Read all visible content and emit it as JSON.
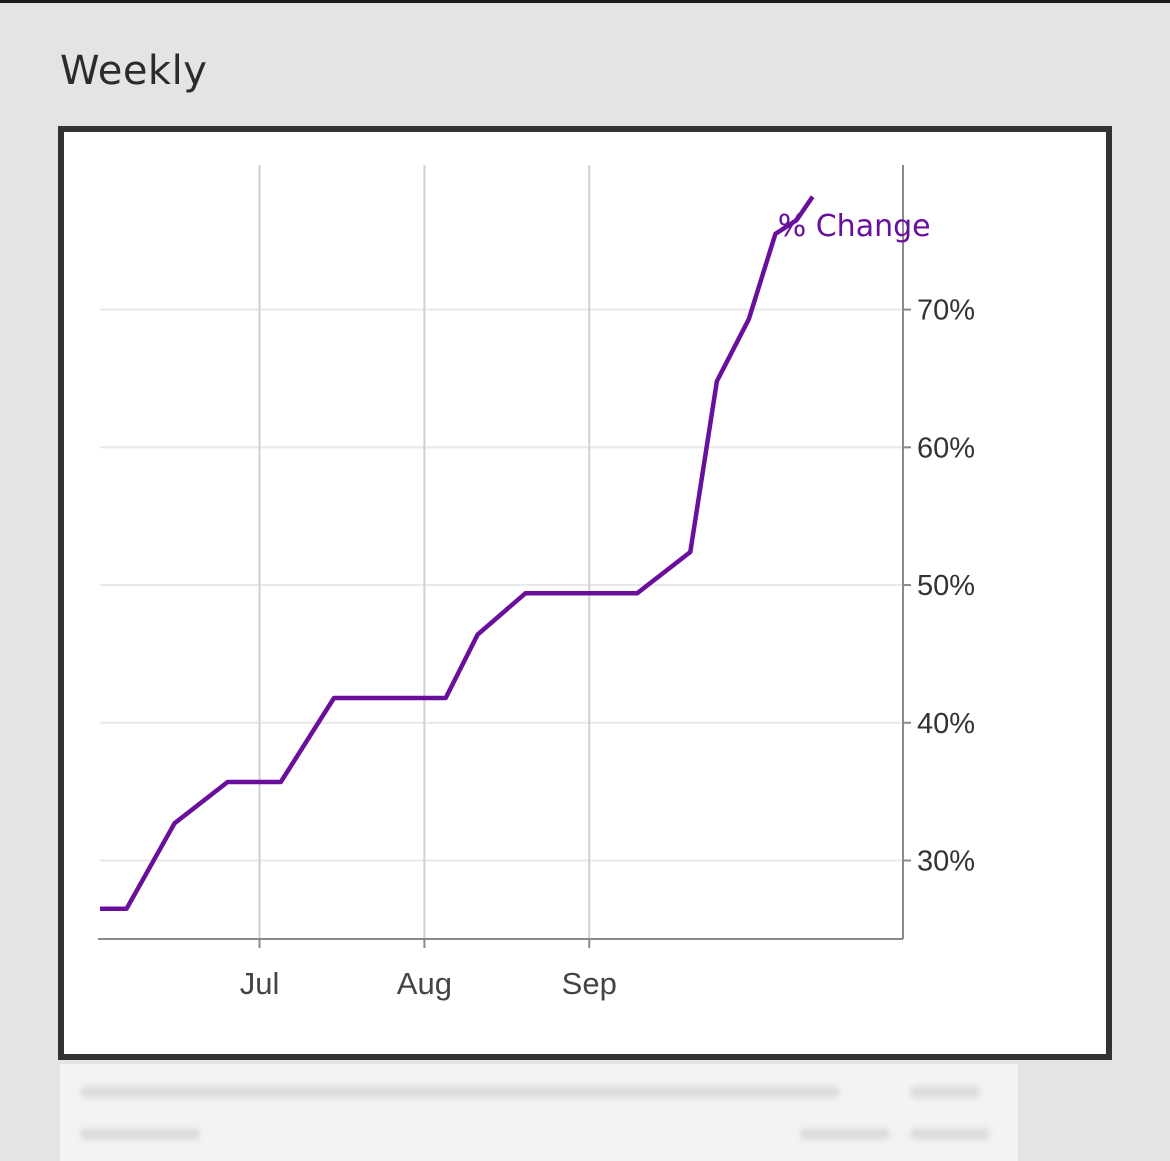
{
  "page": {
    "title": "Weekly"
  },
  "chart_data": {
    "type": "line",
    "series": [
      {
        "name": "% Change",
        "color": "#6a0f9b",
        "x": [
          "2024-06-01",
          "2024-06-06",
          "2024-06-15",
          "2024-06-25",
          "2024-07-05",
          "2024-07-15",
          "2024-08-05",
          "2024-08-11",
          "2024-08-20",
          "2024-09-10",
          "2024-09-20",
          "2024-09-25",
          "2024-10-01",
          "2024-10-06",
          "2024-10-10",
          "2024-10-13"
        ],
        "values": [
          26.5,
          26.5,
          32.7,
          35.7,
          35.7,
          41.8,
          41.8,
          46.4,
          49.4,
          49.4,
          52.4,
          64.8,
          69.3,
          75.5,
          76.5,
          78.2
        ]
      }
    ],
    "y_ticks": [
      "30%",
      "40%",
      "50%",
      "60%",
      "70%"
    ],
    "y_tick_values": [
      30,
      40,
      50,
      60,
      70
    ],
    "x_ticks": [
      "Jul",
      "Aug",
      "Sep"
    ],
    "x_tick_dates": [
      "2024-07-01",
      "2024-08-01",
      "2024-09-01"
    ],
    "x_range": [
      "2024-06-01",
      "2024-10-30"
    ],
    "ylim": [
      24.3,
      80.5
    ],
    "y_axis_side": "right",
    "grid": true,
    "legend": "inline label at end of line"
  }
}
